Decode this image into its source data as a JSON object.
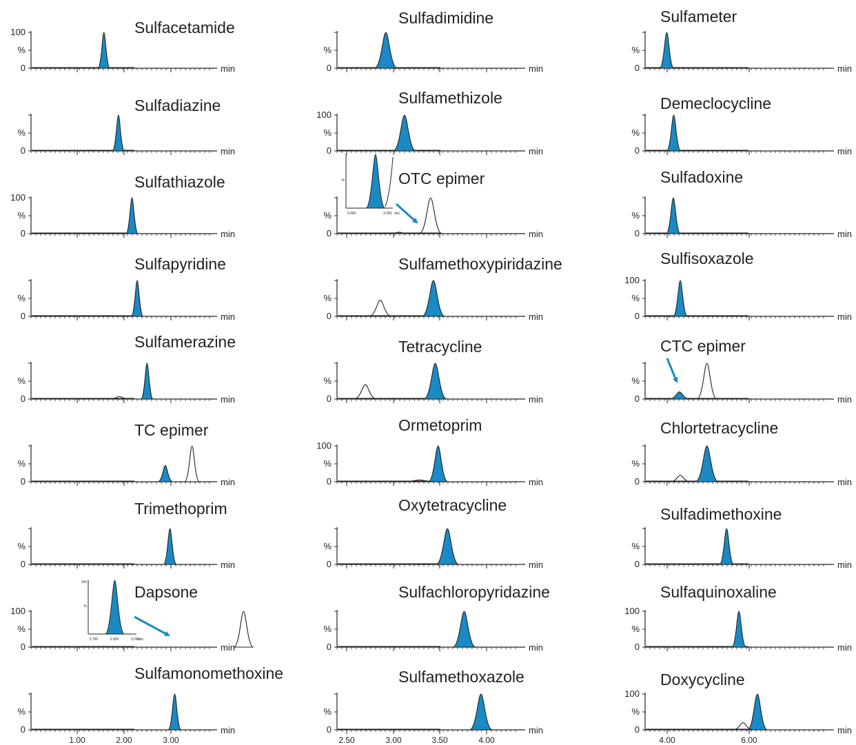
{
  "chart_data": {
    "type": "line",
    "colors": {
      "peak_fill": "#1a8ac5",
      "trace": "#222222",
      "arrow": "#1a8ac5"
    },
    "y_label": "%",
    "y_max_label": "100",
    "y_zero_label": "0",
    "x_unit": "min",
    "columns": [
      {
        "x_range": [
          0.4,
          4.6
        ],
        "tick_labels": [
          "1.00",
          "2.00",
          "3.00"
        ],
        "panels": [
          {
            "title": "Sulfacetamide",
            "show_100": true,
            "peaks": [
              {
                "rt": 1.57,
                "h": 1.0,
                "w": 0.035,
                "filled": true
              }
            ]
          },
          {
            "title": "Sulfadiazine",
            "show_100": false,
            "peaks": [
              {
                "rt": 1.88,
                "h": 1.0,
                "w": 0.035,
                "filled": true
              }
            ]
          },
          {
            "title": "Sulfathiazole",
            "show_100": true,
            "peaks": [
              {
                "rt": 2.17,
                "h": 1.0,
                "w": 0.035,
                "filled": true
              }
            ]
          },
          {
            "title": "Sulfapyridine",
            "show_100": false,
            "peaks": [
              {
                "rt": 2.28,
                "h": 1.0,
                "w": 0.035,
                "filled": true
              }
            ]
          },
          {
            "title": "Sulfamerazine",
            "show_100": false,
            "peaks": [
              {
                "rt": 2.49,
                "h": 1.0,
                "w": 0.035,
                "filled": true
              },
              {
                "rt": 1.9,
                "h": 0.07,
                "w": 0.06,
                "filled": false
              }
            ]
          },
          {
            "title": "TC epimer",
            "show_100": false,
            "peaks": [
              {
                "rt": 2.88,
                "h": 0.45,
                "w": 0.045,
                "filled": true
              },
              {
                "rt": 3.45,
                "h": 1.0,
                "w": 0.045,
                "filled": false
              }
            ]
          },
          {
            "title": "Trimethoprim",
            "show_100": false,
            "peaks": [
              {
                "rt": 2.98,
                "h": 1.0,
                "w": 0.04,
                "filled": true
              }
            ]
          },
          {
            "title": "Dapsone",
            "show_100": true,
            "peaks": [
              {
                "rt": 4.55,
                "h": 1.0,
                "w": 0.06,
                "filled": false
              }
            ],
            "inset": {
              "ticks": [
                "2.750",
                "3.000",
                "3.250"
              ],
              "unit": "min",
              "y100": "100",
              "ypct": "%"
            },
            "arrow": true
          },
          {
            "title": "Sulfamonomethoxine",
            "show_100": false,
            "peaks": [
              {
                "rt": 3.08,
                "h": 1.0,
                "w": 0.04,
                "filled": true
              }
            ]
          }
        ]
      },
      {
        "x_range": [
          2.3,
          4.6
        ],
        "tick_labels": [
          "2.50",
          "3.00",
          "3.50",
          "4.00"
        ],
        "panels": [
          {
            "title": "Sulfadimidine",
            "show_100": false,
            "peaks": [
              {
                "rt": 2.92,
                "h": 1.0,
                "w": 0.035,
                "filled": true
              }
            ]
          },
          {
            "title": "Sulfamethizole",
            "show_100": true,
            "peaks": [
              {
                "rt": 3.12,
                "h": 1.0,
                "w": 0.035,
                "filled": true
              }
            ]
          },
          {
            "title": "OTC epimer",
            "show_100": false,
            "peaks": [
              {
                "rt": 3.4,
                "h": 1.0,
                "w": 0.035,
                "filled": false
              },
              {
                "rt": 3.06,
                "h": 0.04,
                "w": 0.03,
                "filled": true
              }
            ],
            "inset": {
              "ticks": [
                "3.000",
                "3.250"
              ],
              "unit": "min",
              "y100": "",
              "ypct": "%"
            },
            "arrow": true
          },
          {
            "title": "Sulfamethoxypiridazine",
            "show_100": false,
            "peaks": [
              {
                "rt": 3.43,
                "h": 1.0,
                "w": 0.035,
                "filled": true
              },
              {
                "rt": 2.86,
                "h": 0.45,
                "w": 0.035,
                "filled": false
              }
            ]
          },
          {
            "title": "Tetracycline",
            "show_100": false,
            "peaks": [
              {
                "rt": 3.45,
                "h": 1.0,
                "w": 0.035,
                "filled": true
              },
              {
                "rt": 2.7,
                "h": 0.4,
                "w": 0.035,
                "filled": false
              }
            ]
          },
          {
            "title": "Ormetoprim",
            "show_100": true,
            "peaks": [
              {
                "rt": 3.48,
                "h": 1.0,
                "w": 0.03,
                "filled": true
              },
              {
                "rt": 3.28,
                "h": 0.05,
                "w": 0.05,
                "filled": false
              }
            ]
          },
          {
            "title": "Oxytetracycline",
            "show_100": false,
            "peaks": [
              {
                "rt": 3.58,
                "h": 1.0,
                "w": 0.035,
                "filled": true
              }
            ]
          },
          {
            "title": "Sulfachloropyridazine",
            "show_100": false,
            "peaks": [
              {
                "rt": 3.76,
                "h": 1.0,
                "w": 0.035,
                "filled": true
              }
            ]
          },
          {
            "title": "Sulfamethoxazole",
            "show_100": false,
            "peaks": [
              {
                "rt": 3.94,
                "h": 1.0,
                "w": 0.035,
                "filled": true
              }
            ]
          }
        ]
      },
      {
        "x_range": [
          3.0,
          8.2
        ],
        "tick_labels": [
          "4.00",
          "6.00"
        ],
        "panels": [
          {
            "title": "Sulfameter",
            "show_100": false,
            "peaks": [
              {
                "rt": 3.99,
                "h": 1.0,
                "w": 0.05,
                "filled": true
              }
            ]
          },
          {
            "title": "Demeclocycline",
            "show_100": false,
            "peaks": [
              {
                "rt": 4.16,
                "h": 1.0,
                "w": 0.05,
                "filled": true
              }
            ]
          },
          {
            "title": "Sulfadoxine",
            "show_100": false,
            "peaks": [
              {
                "rt": 4.15,
                "h": 1.0,
                "w": 0.05,
                "filled": true
              }
            ]
          },
          {
            "title": "Sulfisoxazole",
            "show_100": true,
            "peaks": [
              {
                "rt": 4.32,
                "h": 1.0,
                "w": 0.05,
                "filled": true
              }
            ]
          },
          {
            "title": "CTC epimer",
            "show_100": false,
            "peaks": [
              {
                "rt": 4.3,
                "h": 0.2,
                "w": 0.07,
                "filled": true
              },
              {
                "rt": 4.97,
                "h": 1.0,
                "w": 0.07,
                "filled": false
              }
            ],
            "arrow": true
          },
          {
            "title": "Chlortetracycline",
            "show_100": false,
            "peaks": [
              {
                "rt": 4.97,
                "h": 1.0,
                "w": 0.08,
                "filled": true
              },
              {
                "rt": 4.32,
                "h": 0.18,
                "w": 0.07,
                "filled": false
              }
            ]
          },
          {
            "title": "Sulfadimethoxine",
            "show_100": false,
            "peaks": [
              {
                "rt": 5.45,
                "h": 1.0,
                "w": 0.05,
                "filled": true
              }
            ]
          },
          {
            "title": "Sulfaquinoxaline",
            "show_100": true,
            "peaks": [
              {
                "rt": 5.75,
                "h": 1.0,
                "w": 0.05,
                "filled": true
              }
            ]
          },
          {
            "title": "Doxycycline",
            "show_100": true,
            "peaks": [
              {
                "rt": 6.2,
                "h": 1.0,
                "w": 0.07,
                "filled": true
              },
              {
                "rt": 5.85,
                "h": 0.2,
                "w": 0.07,
                "filled": false
              }
            ]
          }
        ]
      }
    ]
  }
}
